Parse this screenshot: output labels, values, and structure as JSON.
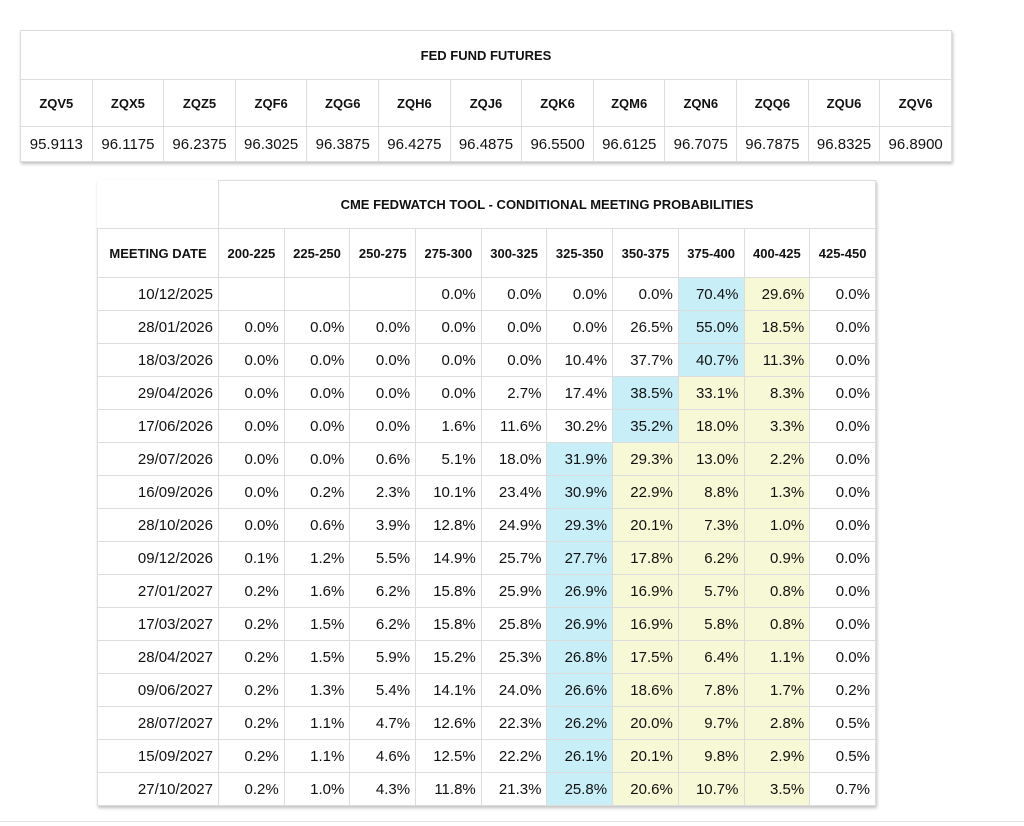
{
  "futures": {
    "title": "FED FUND FUTURES",
    "headers": [
      "ZQV5",
      "ZQX5",
      "ZQZ5",
      "ZQF6",
      "ZQG6",
      "ZQH6",
      "ZQJ6",
      "ZQK6",
      "ZQM6",
      "ZQN6",
      "ZQQ6",
      "ZQU6",
      "ZQV6"
    ],
    "values": [
      "95.9113",
      "96.1175",
      "96.2375",
      "96.3025",
      "96.3875",
      "96.4275",
      "96.4875",
      "96.5500",
      "96.6125",
      "96.7075",
      "96.7875",
      "96.8325",
      "96.8900"
    ]
  },
  "fedwatch": {
    "title": "CME FEDWATCH TOOL - CONDITIONAL MEETING PROBABILITIES",
    "colors": {
      "max": "#c8eef8",
      "range": "#f7f8d6"
    },
    "headers": [
      "MEETING DATE",
      "200-225",
      "225-250",
      "250-275",
      "275-300",
      "300-325",
      "325-350",
      "350-375",
      "375-400",
      "400-425",
      "425-450"
    ],
    "rows": [
      {
        "date": "10/12/2025",
        "cells": [
          null,
          null,
          null,
          "0.0%",
          "0.0%",
          "0.0%",
          "0.0%",
          "70.4%",
          "29.6%",
          "0.0%"
        ],
        "max_col": 7,
        "shaded_cols": [
          8
        ]
      },
      {
        "date": "28/01/2026",
        "cells": [
          "0.0%",
          "0.0%",
          "0.0%",
          "0.0%",
          "0.0%",
          "0.0%",
          "26.5%",
          "55.0%",
          "18.5%",
          "0.0%"
        ],
        "max_col": 7,
        "shaded_cols": [
          8
        ]
      },
      {
        "date": "18/03/2026",
        "cells": [
          "0.0%",
          "0.0%",
          "0.0%",
          "0.0%",
          "0.0%",
          "10.4%",
          "37.7%",
          "40.7%",
          "11.3%",
          "0.0%"
        ],
        "max_col": 7,
        "shaded_cols": [
          8
        ]
      },
      {
        "date": "29/04/2026",
        "cells": [
          "0.0%",
          "0.0%",
          "0.0%",
          "0.0%",
          "2.7%",
          "17.4%",
          "38.5%",
          "33.1%",
          "8.3%",
          "0.0%"
        ],
        "max_col": 6,
        "shaded_cols": [
          7,
          8
        ]
      },
      {
        "date": "17/06/2026",
        "cells": [
          "0.0%",
          "0.0%",
          "0.0%",
          "1.6%",
          "11.6%",
          "30.2%",
          "35.2%",
          "18.0%",
          "3.3%",
          "0.0%"
        ],
        "max_col": 6,
        "shaded_cols": [
          7,
          8
        ]
      },
      {
        "date": "29/07/2026",
        "cells": [
          "0.0%",
          "0.0%",
          "0.6%",
          "5.1%",
          "18.0%",
          "31.9%",
          "29.3%",
          "13.0%",
          "2.2%",
          "0.0%"
        ],
        "max_col": 5,
        "shaded_cols": [
          6,
          7,
          8
        ]
      },
      {
        "date": "16/09/2026",
        "cells": [
          "0.0%",
          "0.2%",
          "2.3%",
          "10.1%",
          "23.4%",
          "30.9%",
          "22.9%",
          "8.8%",
          "1.3%",
          "0.0%"
        ],
        "max_col": 5,
        "shaded_cols": [
          6,
          7,
          8
        ]
      },
      {
        "date": "28/10/2026",
        "cells": [
          "0.0%",
          "0.6%",
          "3.9%",
          "12.8%",
          "24.9%",
          "29.3%",
          "20.1%",
          "7.3%",
          "1.0%",
          "0.0%"
        ],
        "max_col": 5,
        "shaded_cols": [
          6,
          7,
          8
        ]
      },
      {
        "date": "09/12/2026",
        "cells": [
          "0.1%",
          "1.2%",
          "5.5%",
          "14.9%",
          "25.7%",
          "27.7%",
          "17.8%",
          "6.2%",
          "0.9%",
          "0.0%"
        ],
        "max_col": 5,
        "shaded_cols": [
          6,
          7,
          8
        ]
      },
      {
        "date": "27/01/2027",
        "cells": [
          "0.2%",
          "1.6%",
          "6.2%",
          "15.8%",
          "25.9%",
          "26.9%",
          "16.9%",
          "5.7%",
          "0.8%",
          "0.0%"
        ],
        "max_col": 5,
        "shaded_cols": [
          6,
          7,
          8
        ]
      },
      {
        "date": "17/03/2027",
        "cells": [
          "0.2%",
          "1.5%",
          "6.2%",
          "15.8%",
          "25.8%",
          "26.9%",
          "16.9%",
          "5.8%",
          "0.8%",
          "0.0%"
        ],
        "max_col": 5,
        "shaded_cols": [
          6,
          7,
          8
        ]
      },
      {
        "date": "28/04/2027",
        "cells": [
          "0.2%",
          "1.5%",
          "5.9%",
          "15.2%",
          "25.3%",
          "26.8%",
          "17.5%",
          "6.4%",
          "1.1%",
          "0.0%"
        ],
        "max_col": 5,
        "shaded_cols": [
          6,
          7,
          8
        ]
      },
      {
        "date": "09/06/2027",
        "cells": [
          "0.2%",
          "1.3%",
          "5.4%",
          "14.1%",
          "24.0%",
          "26.6%",
          "18.6%",
          "7.8%",
          "1.7%",
          "0.2%"
        ],
        "max_col": 5,
        "shaded_cols": [
          6,
          7,
          8
        ]
      },
      {
        "date": "28/07/2027",
        "cells": [
          "0.2%",
          "1.1%",
          "4.7%",
          "12.6%",
          "22.3%",
          "26.2%",
          "20.0%",
          "9.7%",
          "2.8%",
          "0.5%"
        ],
        "max_col": 5,
        "shaded_cols": [
          6,
          7,
          8
        ]
      },
      {
        "date": "15/09/2027",
        "cells": [
          "0.2%",
          "1.1%",
          "4.6%",
          "12.5%",
          "22.2%",
          "26.1%",
          "20.1%",
          "9.8%",
          "2.9%",
          "0.5%"
        ],
        "max_col": 5,
        "shaded_cols": [
          6,
          7,
          8
        ]
      },
      {
        "date": "27/10/2027",
        "cells": [
          "0.2%",
          "1.0%",
          "4.3%",
          "11.8%",
          "21.3%",
          "25.8%",
          "20.6%",
          "10.7%",
          "3.5%",
          "0.7%"
        ],
        "max_col": 5,
        "shaded_cols": [
          6,
          7,
          8
        ]
      }
    ]
  }
}
